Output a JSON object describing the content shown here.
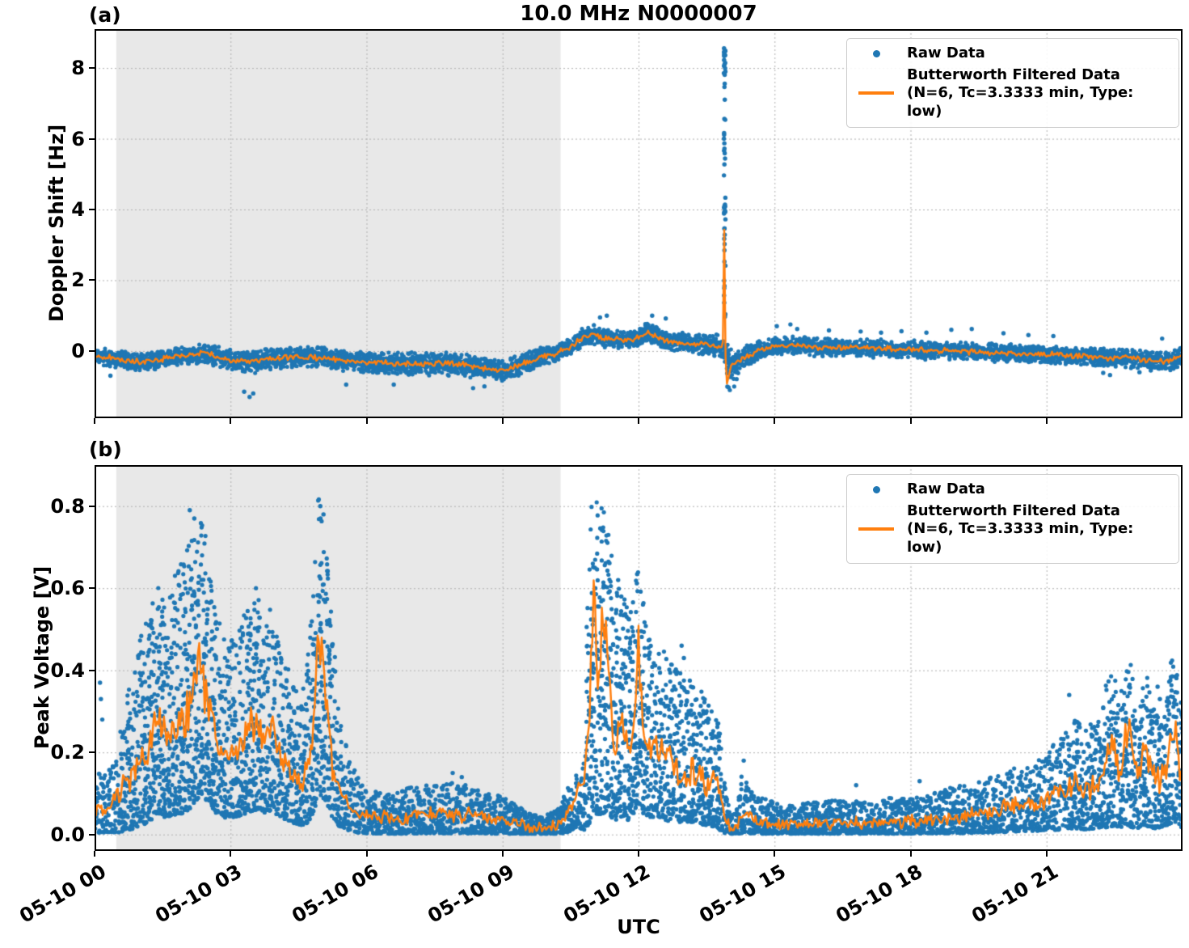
{
  "figure": {
    "title": "10.0 MHz N0000007",
    "panel_a_label": "(a)",
    "panel_b_label": "(b)",
    "ylabel_a": "Doppler Shift [Hz]",
    "ylabel_b": "Peak Voltage [V]",
    "xlabel": "UTC"
  },
  "legend": {
    "raw_label": "Raw Data",
    "filtered_label": "Butterworth Filtered Data",
    "filtered_sublabel": "(N=6, Tc=3.3333 min, Type: low)"
  },
  "colors": {
    "raw": "#1f77b4",
    "filtered": "#ff7f0e",
    "shade": "#e8e8e8",
    "grid": "#b0b0b0",
    "spine": "#000000",
    "legend_border": "#cbcbcb"
  },
  "chart_data": [
    {
      "type": "scatter",
      "panel": "a",
      "title": "10.0 MHz N0000007",
      "ylabel": "Doppler Shift [Hz]",
      "xlabel": "UTC",
      "legend_position": "upper right",
      "grid": true,
      "xlim_hours": [
        0,
        24
      ],
      "x_tick_hours": [
        0,
        3,
        6,
        9,
        12,
        15,
        18,
        21
      ],
      "x_tick_labels": [
        "05-10 00",
        "05-10 03",
        "05-10 06",
        "05-10 09",
        "05-10 12",
        "05-10 15",
        "05-10 18",
        "05-10 21"
      ],
      "x_tick_labels_visible": false,
      "ylim": [
        -1.9,
        9.1
      ],
      "y_ticks": [
        0,
        2,
        4,
        6,
        8
      ],
      "y_tick_labels": [
        "0",
        "2",
        "4",
        "6",
        "8"
      ],
      "shaded_span_hours": [
        0.48,
        10.28
      ],
      "series_names": [
        "Raw Data",
        "Butterworth Filtered Data (N=6, Tc=3.3333 min, Type: low)"
      ],
      "band_t_center_halfwidth": [
        [
          0,
          -0.12,
          0.18
        ],
        [
          0.4,
          -0.22,
          0.2
        ],
        [
          0.9,
          -0.3,
          0.21
        ],
        [
          1.3,
          -0.28,
          0.21
        ],
        [
          1.7,
          -0.2,
          0.2
        ],
        [
          2.1,
          -0.12,
          0.21
        ],
        [
          2.4,
          -0.05,
          0.22
        ],
        [
          2.7,
          -0.16,
          0.22
        ],
        [
          3.1,
          -0.26,
          0.24
        ],
        [
          3.5,
          -0.29,
          0.26
        ],
        [
          4,
          -0.21,
          0.24
        ],
        [
          4.5,
          -0.16,
          0.23
        ],
        [
          5,
          -0.19,
          0.24
        ],
        [
          5.5,
          -0.26,
          0.24
        ],
        [
          6,
          -0.31,
          0.24
        ],
        [
          6.5,
          -0.34,
          0.26
        ],
        [
          7,
          -0.37,
          0.28
        ],
        [
          7.6,
          -0.35,
          0.28
        ],
        [
          8.2,
          -0.39,
          0.26
        ],
        [
          8.7,
          -0.52,
          0.26
        ],
        [
          9,
          -0.56,
          0.24
        ],
        [
          9.4,
          -0.39,
          0.24
        ],
        [
          9.8,
          -0.18,
          0.22
        ],
        [
          10.2,
          -0.07,
          0.2
        ],
        [
          10.5,
          0.12,
          0.2
        ],
        [
          10.8,
          0.42,
          0.22
        ],
        [
          11,
          0.46,
          0.22
        ],
        [
          11.25,
          0.36,
          0.22
        ],
        [
          11.55,
          0.31,
          0.2
        ],
        [
          11.85,
          0.32,
          0.2
        ],
        [
          12.05,
          0.4,
          0.22
        ],
        [
          12.2,
          0.52,
          0.24
        ],
        [
          12.5,
          0.33,
          0.22
        ],
        [
          12.85,
          0.26,
          0.22
        ],
        [
          13.25,
          0.21,
          0.22
        ],
        [
          13.6,
          0.16,
          0.24
        ],
        [
          13.85,
          0.1,
          0.26
        ],
        [
          14.05,
          -0.36,
          0.3
        ],
        [
          14.25,
          -0.24,
          0.28
        ],
        [
          14.55,
          -0.04,
          0.24
        ],
        [
          14.85,
          0.09,
          0.22
        ],
        [
          15.2,
          0.13,
          0.22
        ],
        [
          15.6,
          0.16,
          0.22
        ],
        [
          16,
          0.11,
          0.21
        ],
        [
          16.5,
          0.09,
          0.2
        ],
        [
          17,
          0.09,
          0.2
        ],
        [
          17.5,
          0.06,
          0.2
        ],
        [
          18,
          0.04,
          0.2
        ],
        [
          18.5,
          0.01,
          0.2
        ],
        [
          19,
          0,
          0.2
        ],
        [
          19.5,
          -0.03,
          0.2
        ],
        [
          20,
          -0.06,
          0.2
        ],
        [
          20.5,
          -0.08,
          0.2
        ],
        [
          21,
          -0.1,
          0.2
        ],
        [
          21.5,
          -0.13,
          0.2
        ],
        [
          22,
          -0.16,
          0.21
        ],
        [
          22.5,
          -0.19,
          0.22
        ],
        [
          23,
          -0.23,
          0.22
        ],
        [
          23.5,
          -0.28,
          0.22
        ],
        [
          23.8,
          -0.26,
          0.22
        ],
        [
          24,
          -0.12,
          0.2
        ]
      ],
      "filtered_extra_points": [
        [
          13.865,
          0.35
        ],
        [
          13.895,
          4.05
        ],
        [
          13.925,
          -1.05
        ],
        [
          13.985,
          -0.75
        ]
      ],
      "spike": {
        "t": 13.9,
        "width_hours": 0.035,
        "y_base": 0.95,
        "y_top": 8.55,
        "below_min": -1.15
      },
      "outliers": [
        [
          0.35,
          -0.7
        ],
        [
          3.3,
          -1.15
        ],
        [
          3.42,
          -1.3
        ],
        [
          3.5,
          -1.2
        ],
        [
          5.55,
          -0.95
        ],
        [
          6.6,
          -0.95
        ],
        [
          8.35,
          -1.05
        ],
        [
          8.6,
          -1.0
        ],
        [
          11.15,
          0.95
        ],
        [
          11.3,
          1.0
        ],
        [
          12.3,
          1.0
        ],
        [
          12.6,
          0.92
        ],
        [
          15.05,
          0.7
        ],
        [
          15.35,
          0.75
        ],
        [
          15.5,
          0.62
        ],
        [
          16.2,
          0.58
        ],
        [
          16.9,
          0.55
        ],
        [
          17.35,
          0.52
        ],
        [
          17.8,
          0.56
        ],
        [
          18.35,
          0.52
        ],
        [
          18.9,
          0.6
        ],
        [
          19.35,
          0.62
        ],
        [
          20.05,
          0.5
        ],
        [
          20.6,
          0.45
        ],
        [
          21.15,
          0.42
        ],
        [
          22.25,
          -0.62
        ],
        [
          22.4,
          -0.68
        ],
        [
          23.05,
          -0.6
        ],
        [
          23.3,
          -0.55
        ],
        [
          23.55,
          0.35
        ]
      ]
    },
    {
      "type": "scatter",
      "panel": "b",
      "ylabel": "Peak Voltage [V]",
      "xlabel": "UTC",
      "legend_position": "upper right",
      "grid": true,
      "xlim_hours": [
        0,
        24
      ],
      "x_tick_hours": [
        0,
        3,
        6,
        9,
        12,
        15,
        18,
        21
      ],
      "x_tick_labels": [
        "05-10 00",
        "05-10 03",
        "05-10 06",
        "05-10 09",
        "05-10 12",
        "05-10 15",
        "05-10 18",
        "05-10 21"
      ],
      "x_tick_labels_visible": true,
      "ylim": [
        -0.04,
        0.9
      ],
      "y_ticks": [
        0.0,
        0.2,
        0.4,
        0.6,
        0.8
      ],
      "y_tick_labels": [
        "0.0",
        "0.2",
        "0.4",
        "0.6",
        "0.8"
      ],
      "shaded_span_hours": [
        0.48,
        10.28
      ],
      "series_names": [
        "Raw Data",
        "Butterworth Filtered Data (N=6, Tc=3.3333 min, Type: low)"
      ],
      "band_t_filtered_lo_hi": [
        [
          0,
          0.07,
          0.005,
          0.17
        ],
        [
          0.25,
          0.06,
          0.005,
          0.15
        ],
        [
          0.5,
          0.09,
          0.005,
          0.22
        ],
        [
          0.75,
          0.13,
          0.01,
          0.35
        ],
        [
          1,
          0.18,
          0.02,
          0.5
        ],
        [
          1.2,
          0.22,
          0.03,
          0.55
        ],
        [
          1.4,
          0.28,
          0.05,
          0.63
        ],
        [
          1.6,
          0.22,
          0.04,
          0.55
        ],
        [
          1.8,
          0.26,
          0.05,
          0.65
        ],
        [
          2,
          0.28,
          0.05,
          0.68
        ],
        [
          2.15,
          0.35,
          0.07,
          0.74
        ],
        [
          2.35,
          0.42,
          0.1,
          0.79
        ],
        [
          2.5,
          0.33,
          0.08,
          0.7
        ],
        [
          2.7,
          0.22,
          0.05,
          0.55
        ],
        [
          2.9,
          0.18,
          0.04,
          0.46
        ],
        [
          3.1,
          0.2,
          0.04,
          0.5
        ],
        [
          3.3,
          0.23,
          0.05,
          0.55
        ],
        [
          3.55,
          0.3,
          0.06,
          0.63
        ],
        [
          3.7,
          0.22,
          0.05,
          0.5
        ],
        [
          3.9,
          0.28,
          0.06,
          0.56
        ],
        [
          4.1,
          0.18,
          0.04,
          0.45
        ],
        [
          4.35,
          0.14,
          0.03,
          0.4
        ],
        [
          4.6,
          0.12,
          0.02,
          0.36
        ],
        [
          4.8,
          0.22,
          0.04,
          0.55
        ],
        [
          4.95,
          0.48,
          0.1,
          0.84
        ],
        [
          5.1,
          0.34,
          0.08,
          0.74
        ],
        [
          5.25,
          0.17,
          0.04,
          0.5
        ],
        [
          5.4,
          0.11,
          0.02,
          0.3
        ],
        [
          5.6,
          0.07,
          0.01,
          0.2
        ],
        [
          5.8,
          0.05,
          0.005,
          0.14
        ],
        [
          6,
          0.045,
          0.003,
          0.12
        ],
        [
          6.4,
          0.04,
          0.002,
          0.1
        ],
        [
          6.8,
          0.042,
          0.002,
          0.11
        ],
        [
          7.2,
          0.045,
          0.003,
          0.12
        ],
        [
          7.6,
          0.05,
          0.003,
          0.12
        ],
        [
          8,
          0.05,
          0.003,
          0.13
        ],
        [
          8.4,
          0.045,
          0.003,
          0.11
        ],
        [
          8.8,
          0.04,
          0.002,
          0.1
        ],
        [
          9.2,
          0.03,
          0.002,
          0.08
        ],
        [
          9.6,
          0.018,
          0.001,
          0.05
        ],
        [
          9.9,
          0.015,
          0.001,
          0.045
        ],
        [
          10.2,
          0.02,
          0.001,
          0.06
        ],
        [
          10.45,
          0.05,
          0.005,
          0.12
        ],
        [
          10.65,
          0.1,
          0.02,
          0.16
        ],
        [
          10.8,
          0.12,
          0.01,
          0.2
        ],
        [
          10.92,
          0.3,
          0.02,
          0.85
        ],
        [
          11.02,
          0.62,
          0.05,
          0.86
        ],
        [
          11.12,
          0.36,
          0.05,
          0.8
        ],
        [
          11.22,
          0.52,
          0.05,
          0.8
        ],
        [
          11.32,
          0.44,
          0.05,
          0.78
        ],
        [
          11.45,
          0.2,
          0.03,
          0.62
        ],
        [
          11.6,
          0.3,
          0.04,
          0.6
        ],
        [
          11.75,
          0.2,
          0.03,
          0.56
        ],
        [
          11.9,
          0.26,
          0.05,
          0.64
        ],
        [
          12,
          0.43,
          0.08,
          0.66
        ],
        [
          12.12,
          0.25,
          0.05,
          0.56
        ],
        [
          12.3,
          0.2,
          0.04,
          0.46
        ],
        [
          12.5,
          0.22,
          0.04,
          0.46
        ],
        [
          12.7,
          0.17,
          0.03,
          0.42
        ],
        [
          12.9,
          0.16,
          0.03,
          0.4
        ],
        [
          13.1,
          0.15,
          0.03,
          0.38
        ],
        [
          13.3,
          0.16,
          0.03,
          0.36
        ],
        [
          13.5,
          0.13,
          0.02,
          0.34
        ],
        [
          13.65,
          0.13,
          0.02,
          0.32
        ],
        [
          13.8,
          0.1,
          0.01,
          0.26
        ],
        [
          13.92,
          0.04,
          0.003,
          0.12
        ],
        [
          14.02,
          0.012,
          0.001,
          0.05
        ],
        [
          14.15,
          0.015,
          0.001,
          0.06
        ],
        [
          14.3,
          0.05,
          0.004,
          0.16
        ],
        [
          14.45,
          0.04,
          0.003,
          0.12
        ],
        [
          14.7,
          0.03,
          0.002,
          0.09
        ],
        [
          15,
          0.028,
          0.002,
          0.08
        ],
        [
          15.5,
          0.026,
          0.002,
          0.075
        ],
        [
          16,
          0.028,
          0.002,
          0.08
        ],
        [
          16.5,
          0.03,
          0.002,
          0.085
        ],
        [
          17,
          0.028,
          0.002,
          0.08
        ],
        [
          17.5,
          0.03,
          0.002,
          0.09
        ],
        [
          18,
          0.032,
          0.002,
          0.09
        ],
        [
          18.5,
          0.035,
          0.003,
          0.1
        ],
        [
          19,
          0.04,
          0.003,
          0.12
        ],
        [
          19.5,
          0.05,
          0.004,
          0.13
        ],
        [
          20,
          0.06,
          0.005,
          0.15
        ],
        [
          20.5,
          0.07,
          0.008,
          0.17
        ],
        [
          21,
          0.09,
          0.01,
          0.2
        ],
        [
          21.3,
          0.1,
          0.012,
          0.24
        ],
        [
          21.6,
          0.12,
          0.015,
          0.28
        ],
        [
          21.9,
          0.11,
          0.012,
          0.26
        ],
        [
          22.2,
          0.13,
          0.015,
          0.3
        ],
        [
          22.45,
          0.25,
          0.02,
          0.47
        ],
        [
          22.6,
          0.13,
          0.015,
          0.3
        ],
        [
          22.8,
          0.27,
          0.02,
          0.48
        ],
        [
          23,
          0.13,
          0.015,
          0.3
        ],
        [
          23.2,
          0.22,
          0.02,
          0.42
        ],
        [
          23.4,
          0.13,
          0.015,
          0.3
        ],
        [
          23.6,
          0.15,
          0.02,
          0.33
        ],
        [
          23.8,
          0.28,
          0.03,
          0.48
        ],
        [
          23.95,
          0.15,
          0.02,
          0.35
        ],
        [
          24,
          0.12,
          0.015,
          0.3
        ]
      ],
      "outliers": [
        [
          0.12,
          0.37
        ],
        [
          0.14,
          0.33
        ],
        [
          0.17,
          0.28
        ],
        [
          2.1,
          0.79
        ],
        [
          2.2,
          0.77
        ],
        [
          4.4,
          0.3
        ],
        [
          4.98,
          0.8
        ],
        [
          5.05,
          0.78
        ],
        [
          7.9,
          0.15
        ],
        [
          8.1,
          0.14
        ],
        [
          11.55,
          0.62
        ],
        [
          11.62,
          0.58
        ],
        [
          12.95,
          0.46
        ],
        [
          13.0,
          0.43
        ],
        [
          14.32,
          0.18
        ],
        [
          16.8,
          0.12
        ],
        [
          18.2,
          0.13
        ],
        [
          21.5,
          0.34
        ],
        [
          23.45,
          0.36
        ],
        [
          23.5,
          0.33
        ]
      ]
    }
  ]
}
